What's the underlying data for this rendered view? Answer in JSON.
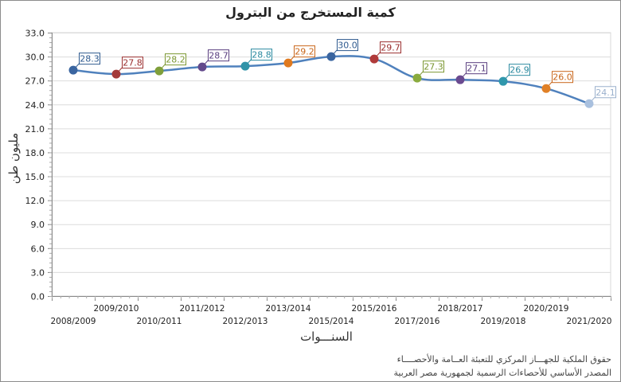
{
  "chart_data": {
    "type": "line",
    "title": "كمية المستخرج من البترول",
    "xlabel": "السنـــوات",
    "ylabel": "مليون طن",
    "ylim": [
      0,
      33
    ],
    "yticks": [
      "0.0",
      "3.0",
      "6.0",
      "9.0",
      "12.0",
      "15.0",
      "18.0",
      "21.0",
      "24.0",
      "27.0",
      "30.0",
      "33.0"
    ],
    "grid": true,
    "legend": "none",
    "categories": [
      "2008/2009",
      "2009/2010",
      "2010/2011",
      "2011/2012",
      "2012/2013",
      "2013/2014",
      "2015/2014",
      "2015/2016",
      "2017/2016",
      "2018/2017",
      "2019/2018",
      "2020/2019",
      "2021/2020"
    ],
    "values": [
      28.3,
      27.8,
      28.2,
      28.7,
      28.8,
      29.2,
      30.0,
      29.7,
      27.3,
      27.1,
      26.9,
      26.0,
      24.1
    ],
    "labels": [
      "28.3",
      "27.8",
      "28.2",
      "28.7",
      "28.8",
      "29.2",
      "30.0",
      "29.7",
      "27.3",
      "27.1",
      "26.9",
      "26.0",
      "24.1"
    ],
    "point_colors": [
      "#3a65a0",
      "#a33a3a",
      "#7f9f3a",
      "#634a8c",
      "#2f93a8",
      "#e07a1f",
      "#3a65a0",
      "#b03a3a",
      "#8aab3e",
      "#6a4a90",
      "#2f97ac",
      "#e08026",
      "#a9c0de"
    ],
    "label_colors": [
      "#2e5a8f",
      "#9b2f2f",
      "#7a9630",
      "#5a3f80",
      "#2b8aa0",
      "#c9661a",
      "#2e5a8f",
      "#9b2f2f",
      "#7a9630",
      "#5a3f80",
      "#2b8aa0",
      "#c9661a",
      "#9ab0cc"
    ],
    "line_color": "#4f81bd"
  },
  "footer": {
    "line1": "حقوق الملكية للجهـــاز المركزي للتعبئة العــامة والأحصــــاء",
    "line2": "المصدر الأساسي للأحصاءات الرسمية لجمهورية مصر العربية"
  }
}
